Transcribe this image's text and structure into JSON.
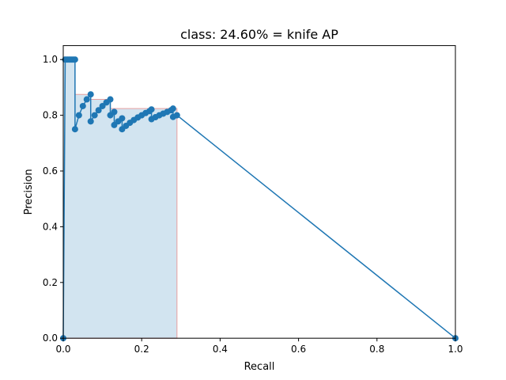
{
  "chart_data": {
    "type": "line",
    "title": "class: 24.60% = knife AP",
    "xlabel": "Recall",
    "ylabel": "Precision",
    "xlim": [
      0.0,
      1.0
    ],
    "ylim": [
      0.0,
      1.05
    ],
    "xticks": [
      0.0,
      0.2,
      0.4,
      0.6,
      0.8,
      1.0
    ],
    "xtick_labels": [
      "0.0",
      "0.2",
      "0.4",
      "0.6",
      "0.8",
      "1.0"
    ],
    "yticks": [
      0.0,
      0.2,
      0.4,
      0.6,
      0.8,
      1.0
    ],
    "ytick_labels": [
      "0.0",
      "0.2",
      "0.4",
      "0.6",
      "0.8",
      "1.0"
    ],
    "grid": false,
    "colors": {
      "line": "#1f77b4",
      "fill": "#1f77b4",
      "fill_edge": "#e8a0a0"
    },
    "series": [
      {
        "x": [
          0.0,
          0.005,
          0.01,
          0.015,
          0.02,
          0.025,
          0.03,
          0.03,
          0.04,
          0.05,
          0.06,
          0.07,
          0.07,
          0.08,
          0.09,
          0.1,
          0.11,
          0.12,
          0.12,
          0.13,
          0.13,
          0.14,
          0.15,
          0.15,
          0.16,
          0.17,
          0.18,
          0.19,
          0.2,
          0.21,
          0.22,
          0.225,
          0.225,
          0.235,
          0.245,
          0.255,
          0.265,
          0.275,
          0.28,
          0.28,
          0.29,
          1.0
        ],
        "y": [
          0.0,
          1.0,
          1.0,
          1.0,
          1.0,
          1.0,
          1.0,
          0.75,
          0.8,
          0.833,
          0.857,
          0.875,
          0.778,
          0.8,
          0.818,
          0.833,
          0.846,
          0.857,
          0.8,
          0.812,
          0.765,
          0.778,
          0.789,
          0.75,
          0.762,
          0.773,
          0.783,
          0.792,
          0.8,
          0.808,
          0.815,
          0.821,
          0.786,
          0.793,
          0.8,
          0.806,
          0.812,
          0.818,
          0.824,
          0.794,
          0.8,
          0.0
        ]
      }
    ],
    "ap_area": {
      "x": [
        0.0,
        0.0,
        0.005,
        0.03,
        0.03,
        0.07,
        0.07,
        0.12,
        0.12,
        0.29,
        0.29
      ],
      "y": [
        0.0,
        1.0,
        1.0,
        1.0,
        0.875,
        0.875,
        0.857,
        0.857,
        0.824,
        0.824,
        0.0
      ]
    }
  }
}
